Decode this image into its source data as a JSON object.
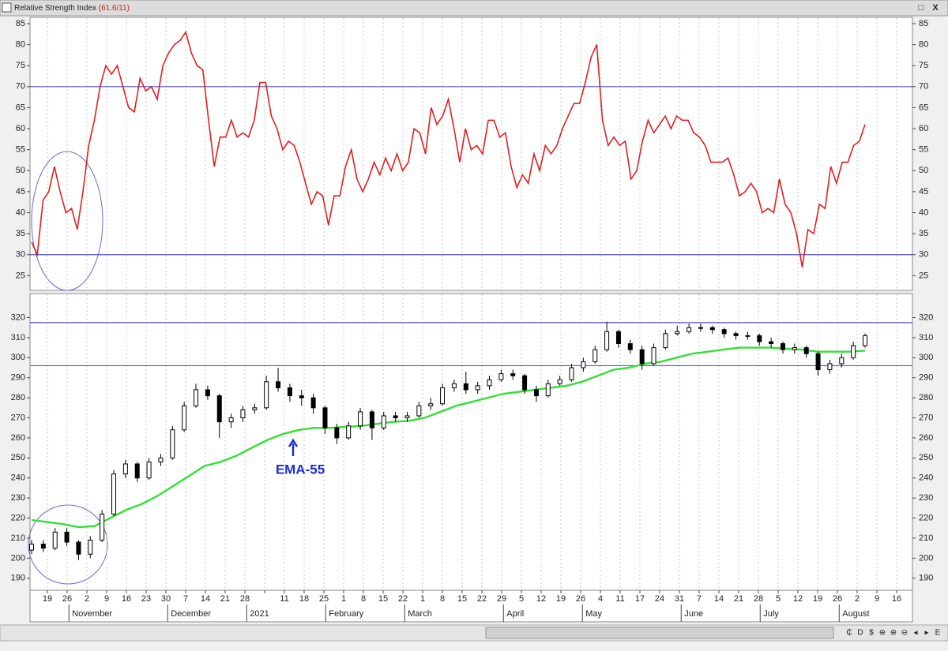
{
  "window": {
    "title": "Relative Strength Index",
    "title_value": "(61.6/11)",
    "buttons": [
      "□",
      "X"
    ]
  },
  "toolbar": [
    "₵",
    "D",
    "$",
    "⊕",
    "⊕",
    "⊖",
    "◂",
    "▸",
    "E"
  ],
  "x_axis": {
    "days": [
      "19",
      "26",
      "2",
      "9",
      "16",
      "23",
      "30",
      "7",
      "14",
      "21",
      "28",
      null,
      "11",
      "18",
      "25",
      "1",
      "8",
      "15",
      "22",
      "1",
      "8",
      "15",
      "22",
      "29",
      "5",
      "12",
      "19",
      "26",
      "4",
      "11",
      "17",
      "24",
      "31",
      "7",
      "14",
      "21",
      "28",
      "5",
      "12",
      "19",
      "26",
      "2",
      "9",
      "16"
    ],
    "months": [
      null,
      null,
      "November",
      null,
      null,
      null,
      null,
      "December",
      null,
      null,
      null,
      "2021",
      null,
      null,
      null,
      "February",
      null,
      null,
      null,
      "March",
      null,
      null,
      null,
      null,
      "April",
      null,
      null,
      null,
      "May",
      null,
      null,
      null,
      null,
      "June",
      null,
      null,
      null,
      "July",
      null,
      null,
      null,
      "August",
      null,
      null
    ],
    "grid": true
  },
  "chart_data": [
    {
      "type": "line",
      "color": "#e02020",
      "ylim": [
        21.5,
        86.5
      ],
      "yticks": [
        25,
        30,
        35,
        40,
        45,
        50,
        55,
        60,
        65,
        70,
        75,
        80,
        85
      ],
      "hlines": [
        70,
        30
      ],
      "hline_color": "#5050c8",
      "values": [
        33,
        30,
        43,
        45,
        51,
        45,
        40,
        41,
        36,
        45,
        56,
        62,
        70,
        75,
        73,
        75,
        70,
        65,
        64,
        72,
        69,
        70,
        67,
        75,
        78,
        80,
        81,
        83,
        78,
        75,
        74,
        62,
        51,
        58,
        58,
        62,
        58,
        59,
        58,
        62,
        71,
        71,
        63,
        60,
        55,
        57,
        56,
        52,
        47,
        42,
        45,
        44,
        37,
        44,
        44,
        51,
        55,
        48,
        45,
        48,
        52,
        49,
        53,
        50,
        54,
        50,
        52,
        60,
        59,
        54,
        65,
        61,
        63,
        67,
        60,
        52,
        60,
        55,
        56,
        54,
        62,
        62,
        58,
        59,
        51,
        46,
        49,
        47,
        54,
        50,
        56,
        54,
        56,
        60,
        63,
        66,
        66,
        71,
        77,
        80,
        62,
        56,
        58,
        56,
        57,
        48,
        50,
        57,
        62,
        59,
        61,
        63,
        60,
        63,
        62,
        62,
        59,
        58,
        56,
        52,
        52,
        52,
        53,
        49,
        44,
        45,
        47,
        45,
        40,
        41,
        40,
        48,
        42,
        40,
        35,
        27,
        36,
        35,
        42,
        41,
        51,
        47,
        52,
        52,
        56,
        57,
        61
      ]
    },
    {
      "type": "candlestick",
      "color": "#000000",
      "ylim": [
        184,
        332
      ],
      "yticks": [
        190,
        200,
        210,
        220,
        230,
        240,
        250,
        260,
        270,
        280,
        290,
        300,
        310,
        320
      ],
      "hlines": [
        317.5,
        296
      ],
      "hline_color": "#5050c8",
      "open": [
        204,
        207,
        205,
        213,
        208,
        202,
        209,
        222,
        242,
        247,
        240,
        248,
        250,
        264,
        276,
        284,
        281,
        268,
        270,
        274,
        275,
        288,
        285,
        281,
        280,
        275,
        265,
        260,
        266,
        273,
        265,
        271,
        270,
        271,
        276,
        277,
        285,
        287,
        284,
        286,
        289,
        292,
        291,
        284,
        281,
        287,
        289,
        295,
        298,
        304,
        313,
        307,
        304,
        297,
        305,
        312,
        313,
        315,
        315,
        314,
        312,
        311,
        311,
        308,
        307,
        304,
        305,
        302,
        294,
        297,
        300,
        306
      ],
      "high": [
        209,
        209,
        215,
        215,
        209,
        211,
        224,
        244,
        249,
        248,
        250,
        252,
        266,
        278,
        287,
        286,
        282,
        272,
        276,
        277,
        291,
        295,
        287,
        284,
        282,
        276,
        267,
        268,
        275,
        274,
        273,
        273,
        273,
        278,
        280,
        287,
        289,
        293,
        288,
        291,
        294,
        294,
        292,
        286,
        289,
        291,
        297,
        300,
        306,
        318,
        314,
        309,
        306,
        307,
        314,
        316,
        317,
        317,
        316,
        315,
        313,
        313,
        312,
        310,
        308,
        307,
        306,
        303,
        299,
        302,
        308,
        312
      ],
      "low": [
        202,
        203,
        204,
        206,
        199,
        200,
        208,
        221,
        240,
        238,
        239,
        246,
        249,
        263,
        275,
        279,
        260,
        265,
        268,
        272,
        274,
        283,
        278,
        276,
        272,
        262,
        257,
        259,
        264,
        259,
        264,
        268,
        268,
        270,
        274,
        276,
        283,
        282,
        282,
        284,
        288,
        289,
        282,
        278,
        280,
        286,
        288,
        293,
        297,
        303,
        305,
        302,
        294,
        296,
        304,
        311,
        312,
        313,
        312,
        310,
        309,
        309,
        306,
        305,
        302,
        302,
        300,
        291,
        292,
        295,
        299,
        305
      ],
      "close": [
        207,
        205,
        213,
        208,
        202,
        209,
        222,
        242,
        247,
        240,
        248,
        250,
        264,
        276,
        284,
        281,
        268,
        270,
        274,
        275,
        288,
        285,
        281,
        280,
        275,
        265,
        260,
        266,
        273,
        265,
        271,
        270,
        271,
        276,
        277,
        285,
        287,
        284,
        286,
        289,
        292,
        291,
        284,
        281,
        287,
        289,
        295,
        298,
        304,
        313,
        307,
        304,
        297,
        305,
        312,
        313,
        315,
        315,
        314,
        312,
        311,
        311,
        308,
        307,
        304,
        305,
        302,
        294,
        297,
        300,
        306,
        311
      ],
      "ema": {
        "color": "#33e033",
        "annotation": "EMA-55",
        "annotation_color": "#1a2fd0",
        "values": [
          219,
          218,
          217,
          215.5,
          216,
          220,
          224,
          227,
          231,
          236,
          241,
          246,
          248,
          251,
          255,
          259,
          262,
          264,
          265,
          265,
          265.5,
          266,
          267,
          268,
          268.5,
          270,
          273,
          276,
          278,
          280,
          282,
          283,
          284,
          285,
          286,
          288,
          291,
          294,
          295,
          297,
          298,
          300,
          302,
          303,
          304,
          305,
          305,
          305,
          304.5,
          304,
          303,
          303,
          303,
          303.5
        ]
      }
    }
  ]
}
